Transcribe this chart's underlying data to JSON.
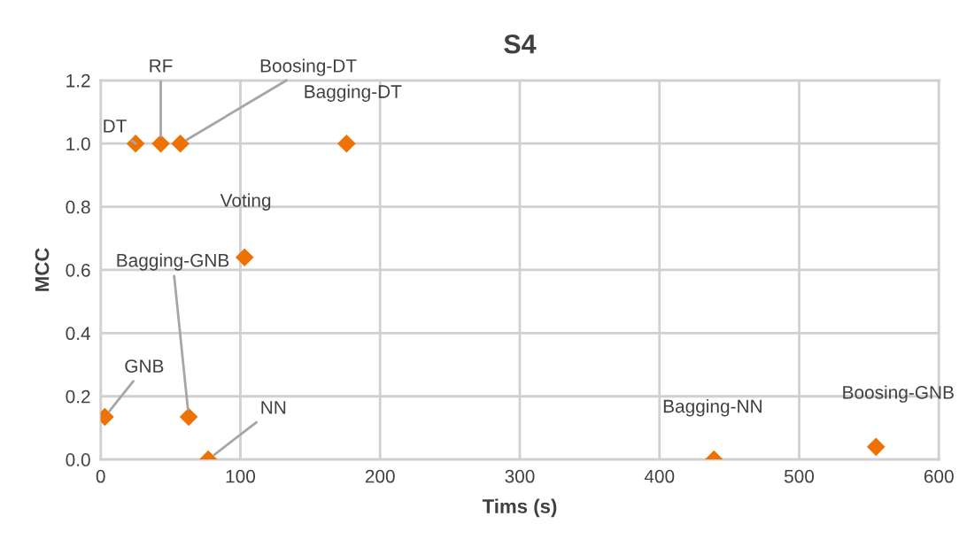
{
  "chart_data": {
    "type": "scatter",
    "title": "S4",
    "xlabel": "Tims (s)",
    "ylabel": "MCC",
    "x": [
      25,
      43,
      57,
      176,
      103,
      63,
      3,
      77,
      439,
      555
    ],
    "series": [
      {
        "color": "#ee7203",
        "values": [
          1.0,
          1.0,
          1.0,
          1.0,
          0.64,
          0.135,
          0.135,
          0.0,
          0.0,
          0.04
        ]
      }
    ],
    "annotations": [
      {
        "text": "DT",
        "x": 25,
        "y": 1.0
      },
      {
        "text": "RF",
        "x": 43,
        "y": 1.0
      },
      {
        "text": "Boosing-DT",
        "x": 57,
        "y": 1.0
      },
      {
        "text": "Bagging-DT",
        "x": 176,
        "y": 1.0
      },
      {
        "text": "Voting",
        "x": 103,
        "y": 0.64
      },
      {
        "text": "Bagging-GNB",
        "x": 63,
        "y": 0.135
      },
      {
        "text": "GNB",
        "x": 3,
        "y": 0.135
      },
      {
        "text": "NN",
        "x": 77,
        "y": 0.0
      },
      {
        "text": "Bagging-NN",
        "x": 439,
        "y": 0.0
      },
      {
        "text": "Boosing-GNB",
        "x": 555,
        "y": 0.04
      }
    ],
    "xlim": [
      0,
      600
    ],
    "xticks": [
      0,
      100,
      200,
      300,
      400,
      500,
      600
    ],
    "ylim": [
      0,
      1.2
    ],
    "yticks": [
      {
        "value": 0,
        "label": "0.0"
      },
      {
        "value": 0.2,
        "label": "0.2"
      },
      {
        "value": 0.4,
        "label": "0.4"
      },
      {
        "value": 0.6,
        "label": "0.6"
      },
      {
        "value": 0.8,
        "label": "0.8"
      },
      {
        "value": 1.0,
        "label": "1.0"
      },
      {
        "value": 1.2,
        "label": "1.2"
      }
    ],
    "grid": true,
    "marker": "diamond"
  }
}
